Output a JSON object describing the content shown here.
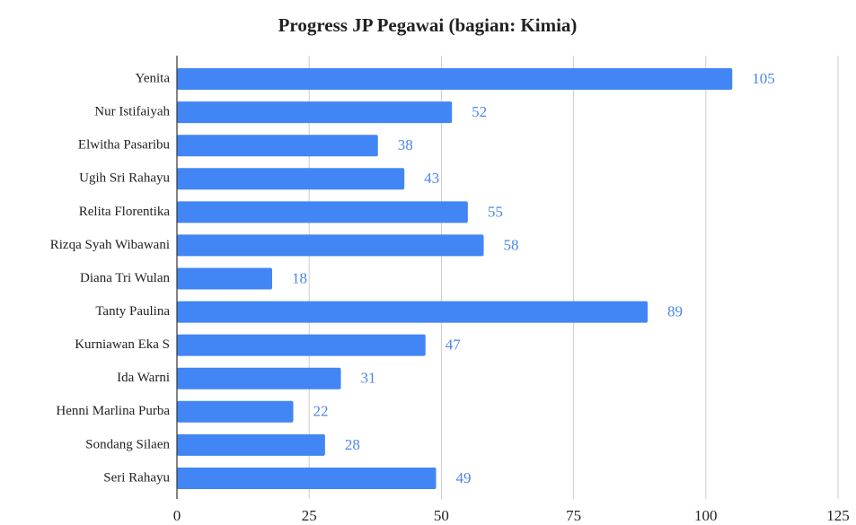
{
  "chart_data": {
    "type": "bar",
    "orientation": "horizontal",
    "title": "Progress JP Pegawai (bagian: Kimia)",
    "categories": [
      "Yenita",
      "Nur Istifaiyah",
      "Elwitha Pasaribu",
      "Ugih Sri Rahayu",
      "Relita Florentika",
      "Rizqa Syah Wibawani",
      "Diana Tri Wulan",
      "Tanty Paulina",
      "Kurniawan Eka S",
      "Ida Warni",
      "Henni Marlina Purba",
      "Sondang Silaen",
      "Seri Rahayu"
    ],
    "values": [
      105,
      52,
      38,
      43,
      55,
      58,
      18,
      89,
      47,
      31,
      22,
      28,
      49
    ],
    "color": "#4285f4",
    "label_color": "#4a86e8",
    "xlim": [
      0,
      125
    ],
    "xticks": [
      0,
      25,
      50,
      75,
      100,
      125
    ],
    "grid": true
  }
}
